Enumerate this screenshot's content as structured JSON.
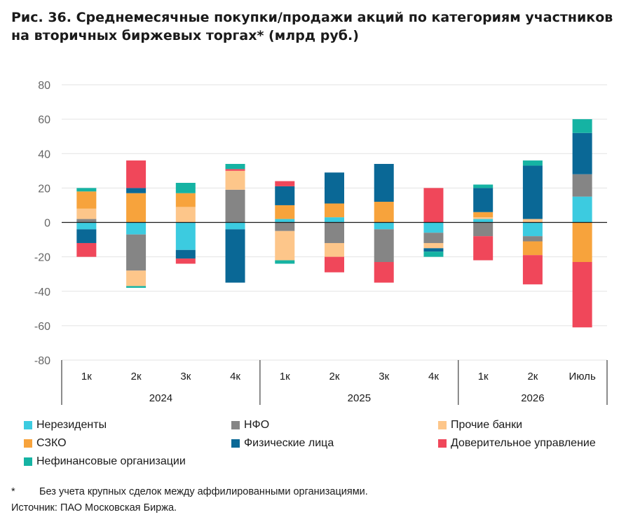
{
  "title": {
    "line1": "Рис. 36. Среднемесячные покупки/продажи акций по категориям участников",
    "line2": "на вторичных биржевых торгах* (млрд руб.)"
  },
  "footnote": {
    "mark": "*",
    "text": "Без учета крупных сделок между аффилированными организациями."
  },
  "source": "Источник: ПАО Московская Биржа.",
  "chart_data": {
    "type": "bar",
    "stacked": true,
    "ylim": [
      -80,
      80
    ],
    "yticks": [
      80,
      60,
      40,
      20,
      0,
      -20,
      -40,
      -60,
      -80
    ],
    "grid": true,
    "legend_position": "bottom",
    "categories": [
      "1к",
      "2к",
      "3к",
      "4к",
      "1к",
      "2к",
      "3к",
      "4к",
      "1к",
      "2к",
      "Июль"
    ],
    "groups": [
      {
        "label": "2024",
        "start": 0,
        "end": 3
      },
      {
        "label": "2025",
        "start": 4,
        "end": 7
      },
      {
        "label": "2026",
        "start": 8,
        "end": 10
      }
    ],
    "series": [
      {
        "name": "Нерезиденты",
        "color": "#3ccbe0",
        "values": [
          -4,
          -7,
          -16,
          -4,
          2,
          3,
          -4,
          -6,
          2,
          -8,
          15
        ]
      },
      {
        "name": "НФО",
        "color": "#858585",
        "values": [
          2,
          -21,
          0,
          19,
          -5,
          -12,
          -19,
          -6,
          -8,
          -3,
          13
        ]
      },
      {
        "name": "Прочие банки",
        "color": "#fdc68a",
        "values": [
          6,
          -9,
          9,
          11,
          -17,
          -8,
          0,
          -3,
          1,
          2,
          0
        ]
      },
      {
        "name": "СЗКО",
        "color": "#f7a33c",
        "values": [
          10,
          17,
          8,
          0,
          8,
          8,
          12,
          0,
          3,
          -8,
          -23
        ]
      },
      {
        "name": "Физические лица",
        "color": "#0a6896",
        "values": [
          -8,
          3,
          -5,
          -31,
          11,
          18,
          22,
          -2,
          14,
          31,
          24
        ]
      },
      {
        "name": "Доверительное управление",
        "color": "#f0475a",
        "values": [
          -8,
          16,
          -3,
          1,
          3,
          -9,
          -12,
          20,
          -14,
          -17,
          -38
        ]
      },
      {
        "name": "Нефинансовые организации",
        "color": "#15b3a3",
        "values": [
          2,
          -1,
          6,
          3,
          -2,
          0,
          0,
          -3,
          2,
          3,
          8
        ]
      }
    ]
  }
}
